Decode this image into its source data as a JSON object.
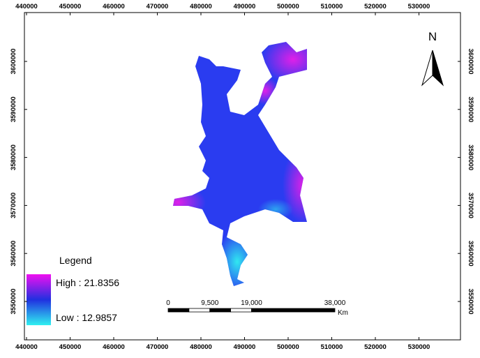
{
  "map": {
    "xticks": [
      440000,
      450000,
      460000,
      470000,
      480000,
      490000,
      500000,
      510000,
      520000,
      530000
    ],
    "yticks": [
      3550000,
      3560000,
      3570000,
      3580000,
      3590000,
      3600000
    ],
    "north": "N",
    "legend": {
      "title": "Legend",
      "high": "High : 21.8356",
      "low": "Low : 12.9857"
    },
    "scalebar": {
      "labels": [
        "0",
        "9,500",
        "19,000",
        "38,000"
      ],
      "unit": "Km"
    }
  }
}
